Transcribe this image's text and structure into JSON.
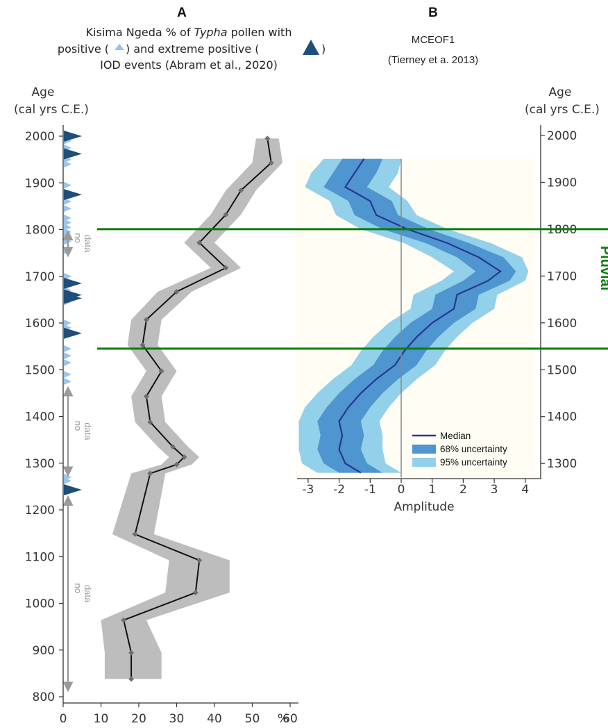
{
  "colors": {
    "typha_line": "#111111",
    "typha_band": "#bdbdbd",
    "typha_marker": "#6e6e6e",
    "iod_positive": "#9dc3e6",
    "iod_extreme": "#1f4e79",
    "median": "#283593",
    "band68": "#4f95cf",
    "band95": "#93d0ea",
    "pluvial_line": "#0a7d0a",
    "nodata_arrow": "#9a9a9a",
    "zero_line": "#888888"
  },
  "panel_a": {
    "letter": "A",
    "title_part1": "Kisima Ngeda % of ",
    "title_italic": "Typha",
    "title_part2": " pollen with",
    "line2_a": "positive (",
    "line2_b": ") and  extreme positive (",
    "line2_c": ")",
    "line3": "IOD events (Abram et al., 2020)",
    "age_label_1": "Age",
    "age_label_2": "(cal yrs C.E.)",
    "nodata_label_1": "no",
    "nodata_label_2": "data"
  },
  "panel_b": {
    "letter": "B",
    "title_1": "MCEOF1",
    "title_2": "(Tierney et a. 2013)",
    "age_label_1": "Age",
    "age_label_2": "(cal yrs C.E.)",
    "pluvial_label": "Pluvial"
  },
  "chart_data": [
    {
      "type": "line",
      "panel": "A",
      "title": "Kisima Ngeda % of Typha pollen with positive and extreme positive IOD events (Abram et al., 2020)",
      "xlabel": "%",
      "ylabel": "Age (cal yrs C.E.)",
      "xlim": [
        0,
        63
      ],
      "ylim": [
        790,
        2030
      ],
      "x_ticks": [
        0,
        10,
        20,
        30,
        40,
        50,
        60
      ],
      "y_ticks": [
        800,
        900,
        1000,
        1100,
        1200,
        1300,
        1400,
        1500,
        1600,
        1700,
        1800,
        1900,
        2000
      ],
      "typha_series": [
        {
          "age": 1995,
          "pct": 54,
          "lo": 51,
          "hi": 57
        },
        {
          "age": 1943,
          "pct": 55,
          "lo": 50,
          "hi": 58
        },
        {
          "age": 1884,
          "pct": 47,
          "lo": 43,
          "hi": 51
        },
        {
          "age": 1832,
          "pct": 43,
          "lo": 39,
          "hi": 47
        },
        {
          "age": 1772,
          "pct": 36,
          "lo": 32,
          "hi": 40
        },
        {
          "age": 1718,
          "pct": 43,
          "lo": 39,
          "hi": 47
        },
        {
          "age": 1667,
          "pct": 30,
          "lo": 25,
          "hi": 34
        },
        {
          "age": 1607,
          "pct": 22,
          "lo": 18,
          "hi": 26
        },
        {
          "age": 1553,
          "pct": 21,
          "lo": 17,
          "hi": 25
        },
        {
          "age": 1497,
          "pct": 26,
          "lo": 22,
          "hi": 30
        },
        {
          "age": 1443,
          "pct": 22,
          "lo": 18,
          "hi": 26
        },
        {
          "age": 1388,
          "pct": 23,
          "lo": 19,
          "hi": 27
        },
        {
          "age": 1335,
          "pct": 29,
          "lo": 25,
          "hi": 33
        },
        {
          "age": 1313,
          "pct": 32,
          "lo": 28,
          "hi": 36
        },
        {
          "age": 1297,
          "pct": 30,
          "lo": 26,
          "hi": 34
        },
        {
          "age": 1278,
          "pct": 23,
          "lo": 18,
          "hi": 27
        },
        {
          "age": 1148,
          "pct": 19,
          "lo": 13,
          "hi": 24
        },
        {
          "age": 1092,
          "pct": 36,
          "lo": 28,
          "hi": 44
        },
        {
          "age": 1023,
          "pct": 35,
          "lo": 27,
          "hi": 44
        },
        {
          "age": 964,
          "pct": 16,
          "lo": 10,
          "hi": 22
        },
        {
          "age": 894,
          "pct": 18,
          "lo": 11,
          "hi": 26
        },
        {
          "age": 838,
          "pct": 18,
          "lo": 11,
          "hi": 26
        }
      ],
      "iod_positive_years": [
        2005,
        1990,
        1975,
        1960,
        1950,
        1940,
        1895,
        1870,
        1860,
        1845,
        1825,
        1815,
        1805,
        1795,
        1785,
        1775,
        1755,
        1700,
        1690,
        1670,
        1645,
        1600,
        1590,
        1545,
        1530,
        1515,
        1490,
        1475,
        1270,
        1262
      ],
      "iod_extreme_years": [
        2000,
        1962,
        1875,
        1685,
        1660,
        1653,
        1578,
        1243
      ],
      "no_data_intervals": [
        [
          1746,
          1794
        ],
        [
          1276,
          1460
        ],
        [
          815,
          1226
        ]
      ]
    },
    {
      "type": "area",
      "panel": "B",
      "title": "MCEOF1 (Tierney et a. 2013)",
      "xlabel": "Amplitude",
      "ylabel": "Age (cal yrs C.E.)",
      "xlim": [
        -3.4,
        4.3
      ],
      "ylim": [
        1270,
        1950
      ],
      "x_ticks": [
        -3,
        -2,
        -1,
        0,
        1,
        2,
        3,
        4
      ],
      "y_ticks": [
        1300,
        1400,
        1500,
        1600,
        1700,
        1800,
        1900,
        2000
      ],
      "legend": [
        "Median",
        "68% uncertainty",
        "95% uncertainty"
      ],
      "legend_position": "bottom-right",
      "series": [
        {
          "age": 1950,
          "median": -1.2,
          "lo68": -1.9,
          "hi68": -0.6,
          "lo95": -2.5,
          "hi95": 0.0
        },
        {
          "age": 1920,
          "median": -1.5,
          "lo68": -2.2,
          "hi68": -0.8,
          "lo95": -2.9,
          "hi95": -0.1
        },
        {
          "age": 1890,
          "median": -1.8,
          "lo68": -2.5,
          "hi68": -1.1,
          "lo95": -3.1,
          "hi95": -0.4
        },
        {
          "age": 1860,
          "median": -1.0,
          "lo68": -1.7,
          "hi68": -0.3,
          "lo95": -2.3,
          "hi95": 0.2
        },
        {
          "age": 1830,
          "median": -0.8,
          "lo68": -1.5,
          "hi68": -0.1,
          "lo95": -2.1,
          "hi95": 0.5
        },
        {
          "age": 1800,
          "median": 0.2,
          "lo68": -0.6,
          "hi68": 0.9,
          "lo95": -1.3,
          "hi95": 1.5
        },
        {
          "age": 1770,
          "median": 1.5,
          "lo68": 0.8,
          "hi68": 2.2,
          "lo95": 0.1,
          "hi95": 2.9
        },
        {
          "age": 1740,
          "median": 2.5,
          "lo68": 1.8,
          "hi68": 3.3,
          "lo95": 1.0,
          "hi95": 3.9
        },
        {
          "age": 1710,
          "median": 3.2,
          "lo68": 2.4,
          "hi68": 3.7,
          "lo95": 1.7,
          "hi95": 4.1
        },
        {
          "age": 1690,
          "median": 2.8,
          "lo68": 2.0,
          "hi68": 3.5,
          "lo95": 1.3,
          "hi95": 4.0
        },
        {
          "age": 1660,
          "median": 1.8,
          "lo68": 1.1,
          "hi68": 2.5,
          "lo95": 0.4,
          "hi95": 3.1
        },
        {
          "age": 1630,
          "median": 1.7,
          "lo68": 1.0,
          "hi68": 2.4,
          "lo95": 0.3,
          "hi95": 3.0
        },
        {
          "age": 1600,
          "median": 1.0,
          "lo68": 0.3,
          "hi68": 1.7,
          "lo95": -0.4,
          "hi95": 2.3
        },
        {
          "age": 1570,
          "median": 0.5,
          "lo68": -0.2,
          "hi68": 1.2,
          "lo95": -0.9,
          "hi95": 1.8
        },
        {
          "age": 1540,
          "median": 0.1,
          "lo68": -0.6,
          "hi68": 0.8,
          "lo95": -1.3,
          "hi95": 1.4
        },
        {
          "age": 1510,
          "median": -0.2,
          "lo68": -0.9,
          "hi68": 0.5,
          "lo95": -1.6,
          "hi95": 1.1
        },
        {
          "age": 1480,
          "median": -0.8,
          "lo68": -1.5,
          "hi68": -0.1,
          "lo95": -2.2,
          "hi95": 0.5
        },
        {
          "age": 1450,
          "median": -1.3,
          "lo68": -2.0,
          "hi68": -0.6,
          "lo95": -2.7,
          "hi95": 0.0
        },
        {
          "age": 1420,
          "median": -1.7,
          "lo68": -2.4,
          "hi68": -1.0,
          "lo95": -3.1,
          "hi95": -0.4
        },
        {
          "age": 1390,
          "median": -2.0,
          "lo68": -2.7,
          "hi68": -1.3,
          "lo95": -3.3,
          "hi95": -0.7
        },
        {
          "age": 1360,
          "median": -1.9,
          "lo68": -2.6,
          "hi68": -1.2,
          "lo95": -3.3,
          "hi95": -0.6
        },
        {
          "age": 1330,
          "median": -2.0,
          "lo68": -2.7,
          "hi68": -1.3,
          "lo95": -3.3,
          "hi95": -0.6
        },
        {
          "age": 1300,
          "median": -1.8,
          "lo68": -2.5,
          "hi68": -1.1,
          "lo95": -3.2,
          "hi95": -0.5
        },
        {
          "age": 1280,
          "median": -1.3,
          "lo68": -2.0,
          "hi68": -0.6,
          "lo95": -2.7,
          "hi95": 0.0
        }
      ],
      "pluvial_interval": [
        1545,
        1800
      ]
    }
  ]
}
